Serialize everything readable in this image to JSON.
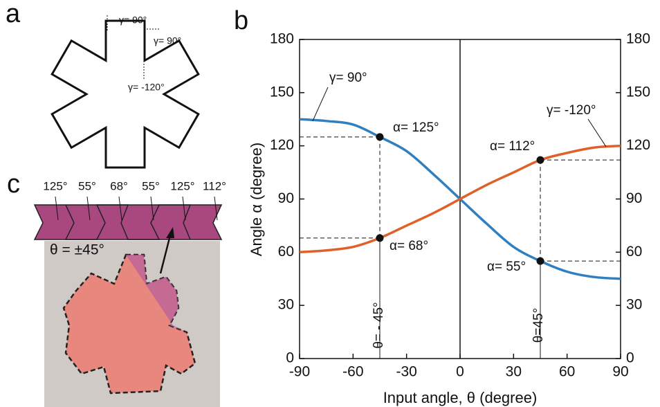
{
  "panels": {
    "a": {
      "label": "a",
      "angles": [
        "γ= 90°",
        "γ= 90°",
        "γ= -120°"
      ]
    },
    "c": {
      "label": "c",
      "fold_angles": [
        "125°",
        "55°",
        "68°",
        "55°",
        "125°",
        "112°"
      ],
      "theta": "θ = ±45°"
    }
  },
  "chart_data": {
    "type": "line",
    "label": "b",
    "x_label": "Input angle, θ (degree)",
    "y_label": "Angle α (degree)",
    "x": [
      -90,
      -75,
      -60,
      -45,
      -30,
      -15,
      0,
      15,
      30,
      45,
      60,
      75,
      90
    ],
    "series": [
      {
        "name": "γ= 90°",
        "color": "#2f7fc1",
        "values": [
          135,
          134,
          132,
          125,
          117,
          104,
          90,
          76,
          63,
          55,
          49,
          46,
          45
        ]
      },
      {
        "name": "γ= -120°",
        "color": "#e0602a",
        "values": [
          60,
          61,
          63,
          68,
          75,
          82,
          90,
          98,
          105,
          112,
          116,
          119,
          120
        ]
      }
    ],
    "annotations": [
      "α= 125°",
      "α= 68°",
      "α= 112°",
      "α= 55°",
      "θ= - 45°",
      "θ=45°"
    ],
    "xlim": [
      -90,
      90
    ],
    "xticks": [
      -90,
      -60,
      -30,
      0,
      30,
      60,
      90
    ],
    "ylim": [
      0,
      180
    ],
    "yticks": [
      0,
      30,
      60,
      90,
      120,
      150,
      180
    ],
    "y2lim": [
      0,
      180
    ],
    "y2ticks": [
      0,
      30,
      60,
      90,
      120,
      150,
      180
    ]
  }
}
